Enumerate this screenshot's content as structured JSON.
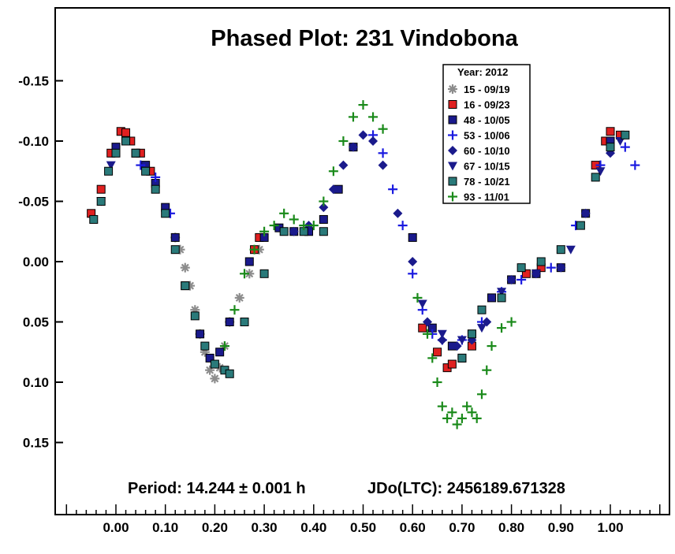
{
  "chart_data": {
    "type": "scatter",
    "title": "Phased Plot: 231 Vindobona",
    "xlabel": "",
    "ylabel": "",
    "xlim": [
      -0.12,
      1.12
    ],
    "ylim": [
      0.21,
      -0.2
    ],
    "x_ticks": [
      "0.00",
      "0.10",
      "0.20",
      "0.30",
      "0.40",
      "0.50",
      "0.60",
      "0.70",
      "0.80",
      "0.90",
      "1.00"
    ],
    "y_ticks": [
      "-0.15",
      "-0.10",
      "-0.05",
      "0.00",
      "0.05",
      "0.10",
      "0.15"
    ],
    "y_tick_values": [
      -0.15,
      -0.1,
      -0.05,
      0.0,
      0.05,
      0.1,
      0.15
    ],
    "legend": {
      "title": "Year: 2012",
      "position": "top-right"
    },
    "footer": {
      "period": "Period: 14.244 ± 0.001 h",
      "epoch": "JDo(LTC): 2456189.671328"
    },
    "series": [
      {
        "name": "15 - 09/19",
        "marker": "asterisk",
        "color": "#8c8c8c",
        "x": [
          0.12,
          0.13,
          0.14,
          0.15,
          0.16,
          0.17,
          0.18,
          0.19,
          0.2,
          0.21,
          0.22,
          0.23,
          0.25,
          0.27,
          0.29
        ],
        "y": [
          -0.02,
          -0.01,
          0.005,
          0.02,
          0.04,
          0.06,
          0.075,
          0.09,
          0.097,
          0.088,
          0.07,
          0.05,
          0.03,
          0.01,
          -0.01
        ]
      },
      {
        "name": "16 - 09/23",
        "marker": "square",
        "color": "#e02020",
        "x": [
          -0.05,
          -0.03,
          -0.01,
          0.01,
          0.02,
          0.03,
          0.05,
          0.07,
          0.28,
          0.29,
          0.62,
          0.65,
          0.67,
          0.68,
          0.7,
          0.72,
          0.83,
          0.86,
          0.97,
          0.99,
          1.0,
          1.02
        ],
        "y": [
          -0.04,
          -0.06,
          -0.09,
          -0.108,
          -0.107,
          -0.1,
          -0.09,
          -0.075,
          -0.01,
          -0.02,
          0.055,
          0.075,
          0.088,
          0.085,
          0.08,
          0.07,
          0.01,
          0.005,
          -0.08,
          -0.1,
          -0.108,
          -0.105
        ]
      },
      {
        "name": "48 - 10/05",
        "marker": "square",
        "color": "#1a1a8c",
        "x": [
          0.0,
          0.02,
          0.04,
          0.06,
          0.08,
          0.1,
          0.12,
          0.14,
          0.17,
          0.19,
          0.21,
          0.23,
          0.27,
          0.3,
          0.33,
          0.36,
          0.39,
          0.42,
          0.45,
          0.48,
          0.6,
          0.64,
          0.68,
          0.72,
          0.76,
          0.8,
          0.85,
          0.9,
          0.95,
          1.0
        ],
        "y": [
          -0.095,
          -0.1,
          -0.09,
          -0.08,
          -0.065,
          -0.045,
          -0.02,
          0.02,
          0.06,
          0.08,
          0.075,
          0.05,
          0.0,
          -0.02,
          -0.028,
          -0.025,
          -0.025,
          -0.035,
          -0.06,
          -0.095,
          -0.02,
          0.055,
          0.07,
          0.06,
          0.03,
          0.015,
          0.01,
          0.005,
          -0.04,
          -0.1
        ]
      },
      {
        "name": "53 - 10/06",
        "marker": "plus",
        "color": "#1a1ae0",
        "x": [
          0.05,
          0.08,
          0.11,
          0.52,
          0.54,
          0.56,
          0.58,
          0.6,
          0.62,
          0.64,
          0.66,
          0.7,
          0.74,
          0.78,
          0.82,
          0.88,
          0.93,
          0.98,
          1.03,
          1.05
        ],
        "y": [
          -0.08,
          -0.07,
          -0.04,
          -0.105,
          -0.09,
          -0.06,
          -0.03,
          0.01,
          0.04,
          0.06,
          0.065,
          0.065,
          0.05,
          0.025,
          0.015,
          0.005,
          -0.03,
          -0.08,
          -0.095,
          -0.08
        ]
      },
      {
        "name": "60 - 10/10",
        "marker": "diamond",
        "color": "#1a1a8c",
        "x": [
          0.36,
          0.39,
          0.42,
          0.44,
          0.46,
          0.48,
          0.5,
          0.52,
          0.54,
          0.57,
          0.6,
          0.63,
          0.66,
          0.69,
          0.72,
          0.75,
          0.8,
          0.85,
          0.9,
          0.95,
          1.0
        ],
        "y": [
          -0.025,
          -0.03,
          -0.045,
          -0.06,
          -0.08,
          -0.095,
          -0.105,
          -0.1,
          -0.08,
          -0.04,
          0.0,
          0.05,
          0.065,
          0.07,
          0.065,
          0.05,
          0.015,
          0.01,
          0.005,
          -0.04,
          -0.09
        ]
      },
      {
        "name": "67 - 10/15",
        "marker": "triangle-down",
        "color": "#1a1a8c",
        "x": [
          -0.03,
          -0.01,
          0.62,
          0.66,
          0.7,
          0.74,
          0.78,
          0.85,
          0.92,
          0.98,
          1.02
        ],
        "y": [
          -0.05,
          -0.08,
          0.035,
          0.06,
          0.065,
          0.055,
          0.025,
          0.01,
          -0.01,
          -0.075,
          -0.1
        ]
      },
      {
        "name": "78 - 10/21",
        "marker": "square",
        "color": "#2a7a7a",
        "x": [
          -0.045,
          -0.03,
          -0.015,
          0.0,
          0.02,
          0.04,
          0.06,
          0.08,
          0.1,
          0.12,
          0.14,
          0.16,
          0.18,
          0.2,
          0.22,
          0.23,
          0.26,
          0.3,
          0.34,
          0.38,
          0.42,
          0.7,
          0.72,
          0.74,
          0.78,
          0.82,
          0.86,
          0.9,
          0.94,
          0.97,
          1.0,
          1.03
        ],
        "y": [
          -0.035,
          -0.05,
          -0.075,
          -0.09,
          -0.1,
          -0.09,
          -0.075,
          -0.06,
          -0.04,
          -0.01,
          0.02,
          0.045,
          0.07,
          0.085,
          0.09,
          0.093,
          0.05,
          0.01,
          -0.025,
          -0.025,
          -0.025,
          0.08,
          0.06,
          0.04,
          0.03,
          0.005,
          0.0,
          -0.01,
          -0.03,
          -0.07,
          -0.095,
          -0.105
        ]
      },
      {
        "name": "93 - 11/01",
        "marker": "plus",
        "color": "#1a8a1a",
        "x": [
          0.22,
          0.24,
          0.26,
          0.28,
          0.3,
          0.32,
          0.34,
          0.36,
          0.38,
          0.4,
          0.42,
          0.44,
          0.46,
          0.48,
          0.5,
          0.52,
          0.54,
          0.61,
          0.63,
          0.64,
          0.65,
          0.66,
          0.67,
          0.68,
          0.69,
          0.7,
          0.71,
          0.72,
          0.73,
          0.74,
          0.75,
          0.76,
          0.78,
          0.8
        ],
        "y": [
          0.07,
          0.04,
          0.01,
          -0.01,
          -0.025,
          -0.03,
          -0.04,
          -0.035,
          -0.03,
          -0.03,
          -0.05,
          -0.075,
          -0.1,
          -0.12,
          -0.13,
          -0.12,
          -0.11,
          0.03,
          0.06,
          0.08,
          0.1,
          0.12,
          0.13,
          0.125,
          0.135,
          0.13,
          0.12,
          0.125,
          0.13,
          0.11,
          0.09,
          0.07,
          0.055,
          0.05
        ]
      }
    ]
  }
}
